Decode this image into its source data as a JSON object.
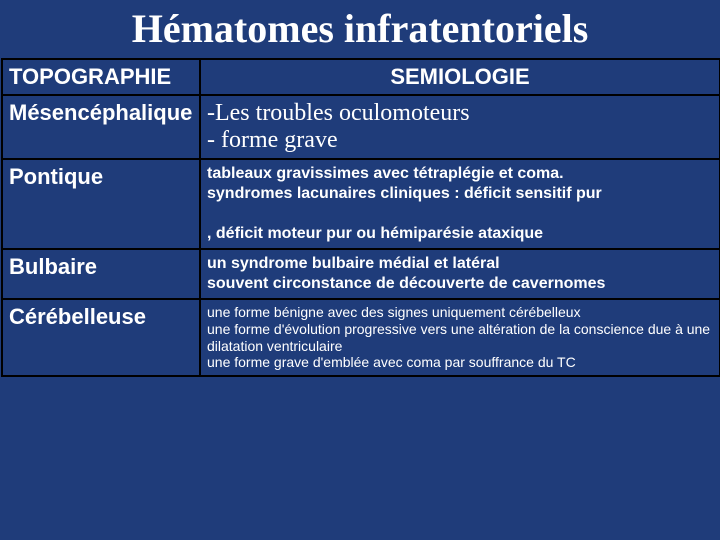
{
  "title": "Hématomes\ninfratentoriels",
  "title_fontsize": 40,
  "header": {
    "topographie": "TOPOGRAPHIE",
    "semiologie": "SEMIOLOGIE",
    "fontsize": 22
  },
  "rows": [
    {
      "topo": "Mésencéphalique",
      "topo_fontsize": 22,
      "semi": "-Les troubles oculomoteurs\n- forme grave",
      "semi_fontsize": 24,
      "semi_class": "semi-mes"
    },
    {
      "topo": "Pontique",
      "topo_fontsize": 22,
      "semi": "tableaux gravissimes avec tétraplégie et coma.\n syndromes lacunaires cliniques : déficit sensitif pur\n\n, déficit moteur pur  ou hémiparésie ataxique",
      "semi_fontsize": 16,
      "semi_class": "semi-small"
    },
    {
      "topo": "Bulbaire",
      "topo_fontsize": 22,
      "semi": "un syndrome bulbaire médial et latéral\n souvent circonstance de découverte de cavernomes",
      "semi_fontsize": 16,
      "semi_class": "semi-small"
    },
    {
      "topo": "Cérébelleuse",
      "topo_fontsize": 22,
      "semi": "une forme bénigne avec des signes uniquement cérébelleux\nune forme d'évolution progressive vers une altération de la conscience due à une dilatation ventriculaire\n une forme grave d'emblée avec coma par souffrance du TC",
      "semi_fontsize": 14,
      "semi_class": "semi-cereb"
    }
  ],
  "colors": {
    "background": "#1f3c7a",
    "text": "#ffffff",
    "border": "#000000"
  }
}
